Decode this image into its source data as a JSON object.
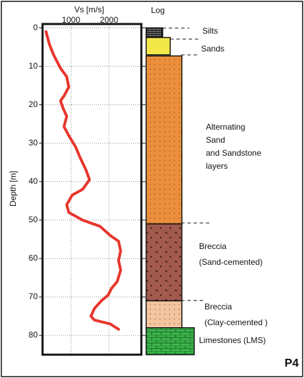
{
  "chart_data": {
    "type": "line",
    "x_label": "Vs [m/s]",
    "y_label": "Depth [m]",
    "log_title": "Log",
    "panel_label": "P4",
    "xlim": [
      250,
      2850
    ],
    "xticks": [
      1000,
      2000
    ],
    "ylim": [
      -1,
      85
    ],
    "yticks": [
      0,
      10,
      20,
      30,
      40,
      50,
      60,
      70,
      80
    ],
    "grid": true,
    "series": [
      {
        "color": "#e8352c",
        "depth": [
          1,
          4.3,
          7,
          10.5,
          12.7,
          15.4,
          17.7,
          19,
          21,
          23,
          25.7,
          28,
          31,
          34,
          37,
          39.5,
          42,
          43.5,
          46,
          48,
          50,
          51.6,
          54,
          55.5,
          58,
          60.5,
          63,
          66,
          67.7,
          69.5,
          71,
          73,
          75,
          76,
          77,
          78.4
        ],
        "values": [
          341,
          432,
          540,
          722,
          886,
          940,
          814,
          722,
          795,
          886,
          814,
          940,
          1122,
          1250,
          1395,
          1486,
          1304,
          1031,
          886,
          940,
          1304,
          1759,
          2032,
          2250,
          2305,
          2250,
          2305,
          2214,
          2068,
          1977,
          1795,
          1614,
          1523,
          1614,
          2032,
          2250
        ]
      }
    ],
    "layers": [
      {
        "label": [
          "Silts"
        ],
        "top": 0,
        "bottom": 2.5,
        "color": "#222222"
      },
      {
        "label": [
          "Sands"
        ],
        "top": 2.5,
        "bottom": 7,
        "color": "#f3e84a"
      },
      {
        "label": [
          "Alternating",
          "Sand",
          "and Sandstone",
          "layers"
        ],
        "top": 7.3,
        "bottom": 51,
        "color": "#ec8f3c"
      },
      {
        "label": [
          "Breccia",
          "(Sand-cemented)"
        ],
        "top": 51,
        "bottom": 71,
        "color": "#a35a4e"
      },
      {
        "label": [
          "Breccia",
          "(Clay-cemented )"
        ],
        "top": 71,
        "bottom": 78,
        "color": "#f3c59f"
      },
      {
        "label": [
          "Limestones (LMS)"
        ],
        "top": 78,
        "bottom": 85,
        "color": "#3cb64b"
      }
    ]
  }
}
